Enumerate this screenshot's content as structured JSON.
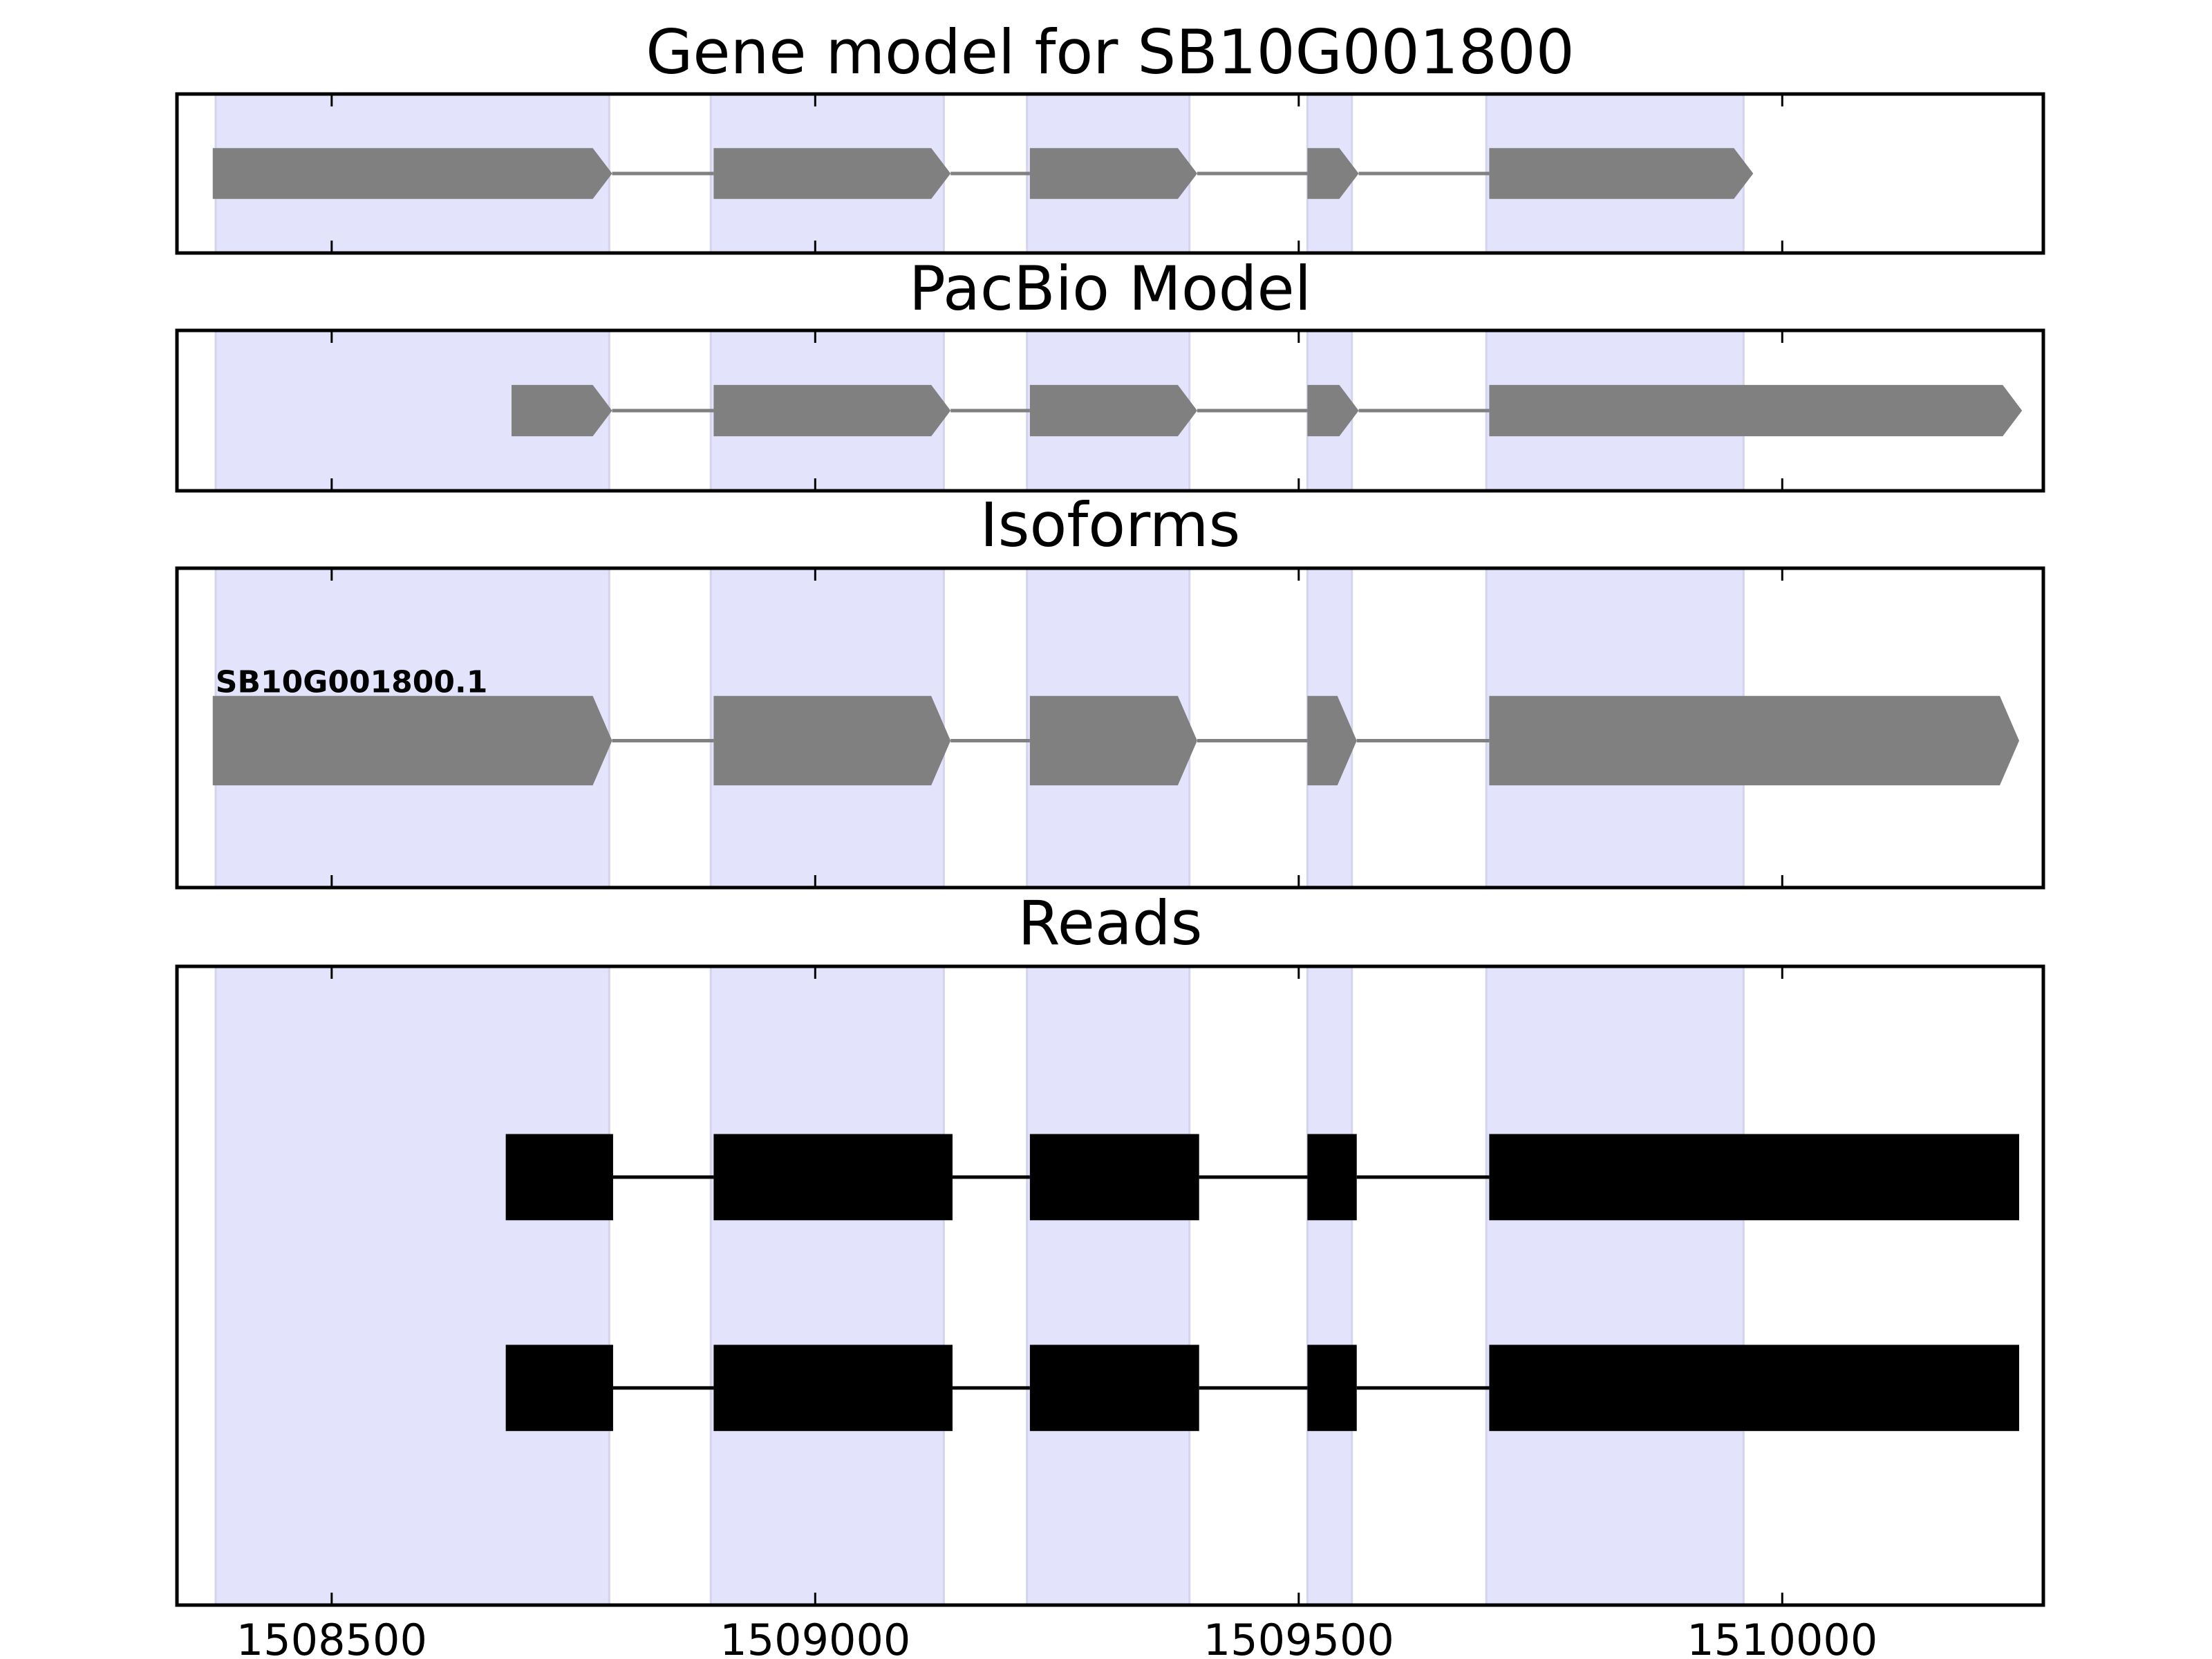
{
  "colors": {
    "background": "#ffffff",
    "exon_band": "#e3e3fc",
    "exon_band_edge": "#d4d4ee",
    "model_feature": "#808080",
    "read_feature": "#000000",
    "axis": "#000000"
  },
  "chart_data": {
    "type": "gene-structure",
    "xlim": [
      1508340,
      1510270
    ],
    "xticks": [
      1508500,
      1509000,
      1509500,
      1510000
    ],
    "xtick_labels": [
      "1508500",
      "1509000",
      "1509500",
      "1510000"
    ],
    "highlight_exons": [
      [
        1508380,
        1508787
      ],
      [
        1508892,
        1509133
      ],
      [
        1509219,
        1509387
      ],
      [
        1509509,
        1509555
      ],
      [
        1509694,
        1509960
      ]
    ],
    "panels": [
      {
        "title": "Gene model for SB10G001800",
        "tracks": [
          {
            "label": "",
            "exons": [
              [
                1508377,
                1508790
              ],
              [
                1508895,
                1509140
              ],
              [
                1509222,
                1509395
              ],
              [
                1509509,
                1509562
              ],
              [
                1509697,
                1509970
              ]
            ]
          }
        ]
      },
      {
        "title": "PacBio Model",
        "tracks": [
          {
            "label": "",
            "exons": [
              [
                1508686,
                1508790
              ],
              [
                1508895,
                1509140
              ],
              [
                1509222,
                1509395
              ],
              [
                1509509,
                1509562
              ],
              [
                1509697,
                1510248
              ]
            ]
          }
        ]
      },
      {
        "title": "Isoforms",
        "tracks": [
          {
            "label": "SB10G001800.1",
            "exons": [
              [
                1508377,
                1508790
              ],
              [
                1508895,
                1509140
              ],
              [
                1509222,
                1509395
              ],
              [
                1509509,
                1509560
              ],
              [
                1509697,
                1510245
              ]
            ]
          }
        ]
      },
      {
        "title": "Reads",
        "tracks": [
          {
            "label": "",
            "exons": [
              [
                1508680,
                1508791
              ],
              [
                1508895,
                1509142
              ],
              [
                1509222,
                1509397
              ],
              [
                1509509,
                1509560
              ],
              [
                1509697,
                1510245
              ]
            ]
          },
          {
            "label": "",
            "exons": [
              [
                1508680,
                1508791
              ],
              [
                1508895,
                1509142
              ],
              [
                1509222,
                1509397
              ],
              [
                1509509,
                1509560
              ],
              [
                1509697,
                1510245
              ]
            ]
          }
        ]
      }
    ]
  }
}
